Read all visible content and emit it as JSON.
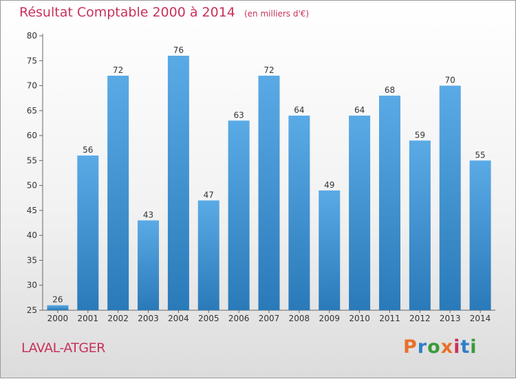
{
  "header": {
    "title": "Résultat Comptable 2000 à 2014",
    "subtitle": "(en milliers d'€)"
  },
  "footer": {
    "place": "LAVAL-ATGER",
    "brand": "Proxiti"
  },
  "colors": {
    "bar_top": "#5aaae6",
    "bar_bottom": "#2a7ab9",
    "title": "#c8325a",
    "brand": [
      "#e8702a",
      "#2f7ec9",
      "#3a9a3a",
      "#e8702a",
      "#c8325a",
      "#2f7ec9",
      "#3a9a3a"
    ]
  },
  "chart_data": {
    "type": "bar",
    "categories": [
      "2000",
      "2001",
      "2002",
      "2003",
      "2004",
      "2005",
      "2006",
      "2007",
      "2008",
      "2009",
      "2010",
      "2011",
      "2012",
      "2013",
      "2014"
    ],
    "values": [
      26,
      56,
      72,
      43,
      76,
      47,
      63,
      72,
      64,
      49,
      64,
      68,
      59,
      70,
      55
    ],
    "ylim": [
      25,
      80
    ],
    "yticks": [
      25,
      30,
      35,
      40,
      45,
      50,
      55,
      60,
      65,
      70,
      75,
      80
    ],
    "grid": false
  }
}
